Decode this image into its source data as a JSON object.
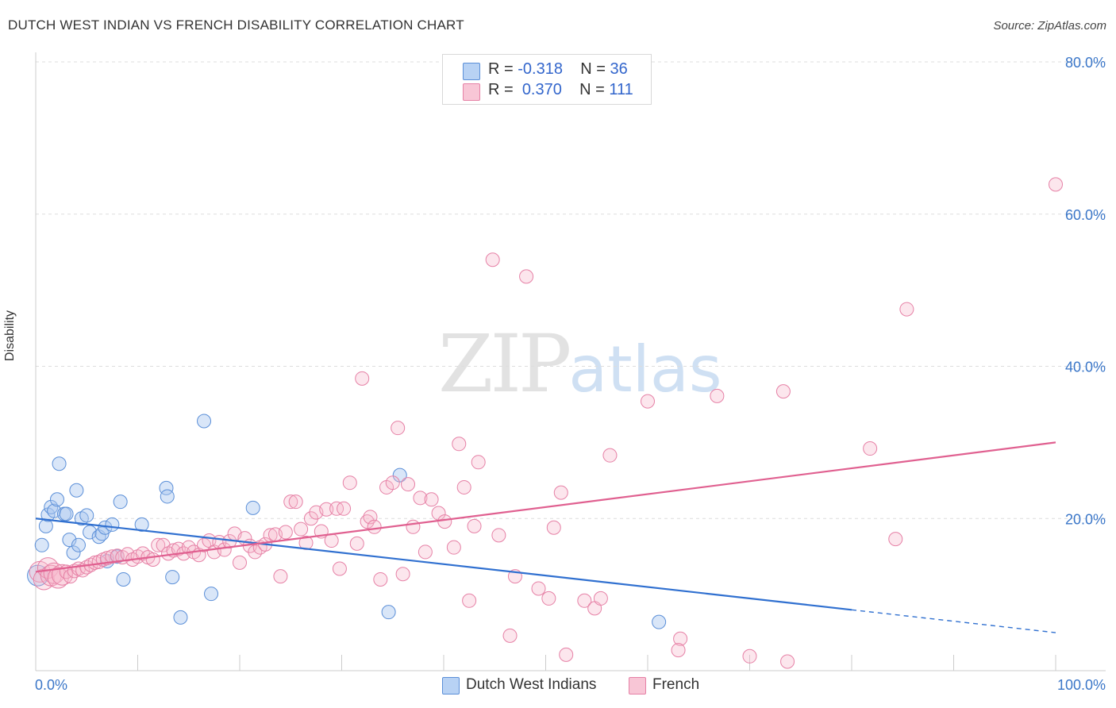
{
  "title": "DUTCH WEST INDIAN VS FRENCH DISABILITY CORRELATION CHART",
  "source": "Source: ZipAtlas.com",
  "watermark": {
    "zip": "ZIP",
    "atlas": "atlas"
  },
  "colors": {
    "blue": "#3070d0",
    "blue_fill": "#aac8f0",
    "pink": "#e06090",
    "pink_fill": "#f5b8cc",
    "grid": "#dddddd",
    "tick_label": "#3a76c8"
  },
  "legend": {
    "blue": {
      "r_label": "R =",
      "r_value": "-0.318",
      "n_label": "N =",
      "n_value": "36"
    },
    "pink": {
      "r_label": "R =",
      "r_value": "0.370",
      "n_label": "N =",
      "n_value": "111"
    }
  },
  "bottom_legend": {
    "blue": "Dutch West Indians",
    "pink": "French"
  },
  "chart_data": {
    "type": "scatter",
    "title": "DUTCH WEST INDIAN VS FRENCH DISABILITY CORRELATION CHART",
    "xlabel": "",
    "ylabel": "Disability",
    "xlim": [
      0,
      100
    ],
    "ylim": [
      0,
      80
    ],
    "x_tick_labels": [
      "0.0%",
      "100.0%"
    ],
    "y_ticks": [
      20,
      40,
      60,
      80
    ],
    "y_tick_labels": [
      "20.0%",
      "40.0%",
      "60.0%",
      "80.0%"
    ],
    "grid": "horizontal dashed",
    "legend_placement": "top-center",
    "series": [
      {
        "name": "Dutch West Indians",
        "color": "#3070d0",
        "trend": {
          "x0": 0,
          "y0": 20.0,
          "x1": 80,
          "y1": 8.0,
          "dashed_to_x": 100,
          "dashed_to_y": 5.0
        },
        "points": [
          [
            0.2,
            12.5
          ],
          [
            0.6,
            16.5
          ],
          [
            1.0,
            19.0
          ],
          [
            1.2,
            20.5
          ],
          [
            1.5,
            21.5
          ],
          [
            1.8,
            21.0
          ],
          [
            2.1,
            22.5
          ],
          [
            2.3,
            27.2
          ],
          [
            2.8,
            20.6
          ],
          [
            3.0,
            20.6
          ],
          [
            3.3,
            17.2
          ],
          [
            3.7,
            15.5
          ],
          [
            4.0,
            23.7
          ],
          [
            4.2,
            16.5
          ],
          [
            4.5,
            20.0
          ],
          [
            5.0,
            20.4
          ],
          [
            5.3,
            18.2
          ],
          [
            6.2,
            17.6
          ],
          [
            6.5,
            18.0
          ],
          [
            6.8,
            18.8
          ],
          [
            7.0,
            14.4
          ],
          [
            7.5,
            19.2
          ],
          [
            8.0,
            15.0
          ],
          [
            8.3,
            22.2
          ],
          [
            8.6,
            12.0
          ],
          [
            10.4,
            19.2
          ],
          [
            12.8,
            24.0
          ],
          [
            12.9,
            22.9
          ],
          [
            13.4,
            12.3
          ],
          [
            14.2,
            7.0
          ],
          [
            16.5,
            32.8
          ],
          [
            17.2,
            10.1
          ],
          [
            21.3,
            21.4
          ],
          [
            34.6,
            7.7
          ],
          [
            35.7,
            25.7
          ],
          [
            61.1,
            6.4
          ]
        ]
      },
      {
        "name": "French",
        "color": "#e06090",
        "trend": {
          "x0": 0,
          "y0": 13.0,
          "x1": 100,
          "y1": 30.0
        },
        "points": [
          [
            0.4,
            13.0
          ],
          [
            0.8,
            12.0
          ],
          [
            1.2,
            13.5
          ],
          [
            1.5,
            12.5
          ],
          [
            1.8,
            12.8
          ],
          [
            2.2,
            12.2
          ],
          [
            2.6,
            12.6
          ],
          [
            3.0,
            13.0
          ],
          [
            3.4,
            12.4
          ],
          [
            3.8,
            13.1
          ],
          [
            4.2,
            13.4
          ],
          [
            4.6,
            13.2
          ],
          [
            5.0,
            13.6
          ],
          [
            5.4,
            13.9
          ],
          [
            5.8,
            14.2
          ],
          [
            6.2,
            14.3
          ],
          [
            6.6,
            14.6
          ],
          [
            7.0,
            14.8
          ],
          [
            7.5,
            15.0
          ],
          [
            8.0,
            15.1
          ],
          [
            8.5,
            14.9
          ],
          [
            9.0,
            15.3
          ],
          [
            9.5,
            14.6
          ],
          [
            10.0,
            15.0
          ],
          [
            10.5,
            15.4
          ],
          [
            11.0,
            14.9
          ],
          [
            11.5,
            14.6
          ],
          [
            12.0,
            16.5
          ],
          [
            12.5,
            16.5
          ],
          [
            13.0,
            15.4
          ],
          [
            13.5,
            15.8
          ],
          [
            14.0,
            16.0
          ],
          [
            14.5,
            15.4
          ],
          [
            15.0,
            16.2
          ],
          [
            15.5,
            15.6
          ],
          [
            16.0,
            15.2
          ],
          [
            16.5,
            16.5
          ],
          [
            17.0,
            17.1
          ],
          [
            17.5,
            15.6
          ],
          [
            18.0,
            16.9
          ],
          [
            18.5,
            15.9
          ],
          [
            19.0,
            17.0
          ],
          [
            19.5,
            18.0
          ],
          [
            20.0,
            14.2
          ],
          [
            20.5,
            17.4
          ],
          [
            21.0,
            16.4
          ],
          [
            21.5,
            15.6
          ],
          [
            22.0,
            16.2
          ],
          [
            22.5,
            16.6
          ],
          [
            23.0,
            17.8
          ],
          [
            23.5,
            17.9
          ],
          [
            24.0,
            12.4
          ],
          [
            24.5,
            18.2
          ],
          [
            25.0,
            22.2
          ],
          [
            25.5,
            22.2
          ],
          [
            26.0,
            18.6
          ],
          [
            26.5,
            16.8
          ],
          [
            27.0,
            20.0
          ],
          [
            27.5,
            20.8
          ],
          [
            28.0,
            18.3
          ],
          [
            28.5,
            21.2
          ],
          [
            29.0,
            17.1
          ],
          [
            29.5,
            21.3
          ],
          [
            29.8,
            13.4
          ],
          [
            30.2,
            21.3
          ],
          [
            30.8,
            24.7
          ],
          [
            31.5,
            16.7
          ],
          [
            32.0,
            38.4
          ],
          [
            32.5,
            19.6
          ],
          [
            32.8,
            20.2
          ],
          [
            33.2,
            18.9
          ],
          [
            33.8,
            12.0
          ],
          [
            34.4,
            24.1
          ],
          [
            35.0,
            24.7
          ],
          [
            35.5,
            31.9
          ],
          [
            36.0,
            12.7
          ],
          [
            36.5,
            24.5
          ],
          [
            37.0,
            18.9
          ],
          [
            37.7,
            22.7
          ],
          [
            38.2,
            15.6
          ],
          [
            38.8,
            22.5
          ],
          [
            39.5,
            20.7
          ],
          [
            40.1,
            19.6
          ],
          [
            41.0,
            16.2
          ],
          [
            41.5,
            29.8
          ],
          [
            42.0,
            24.1
          ],
          [
            42.5,
            9.2
          ],
          [
            43.0,
            19.0
          ],
          [
            43.4,
            27.4
          ],
          [
            44.8,
            54.0
          ],
          [
            45.4,
            17.8
          ],
          [
            46.5,
            4.6
          ],
          [
            47.0,
            12.4
          ],
          [
            48.1,
            51.8
          ],
          [
            49.3,
            10.8
          ],
          [
            50.3,
            9.5
          ],
          [
            50.8,
            18.8
          ],
          [
            51.5,
            23.4
          ],
          [
            52.0,
            2.1
          ],
          [
            53.8,
            9.2
          ],
          [
            54.8,
            8.2
          ],
          [
            55.4,
            9.5
          ],
          [
            56.3,
            28.3
          ],
          [
            60.0,
            35.4
          ],
          [
            63.2,
            4.2
          ],
          [
            63.0,
            2.7
          ],
          [
            66.8,
            36.1
          ],
          [
            70.0,
            1.9
          ],
          [
            73.3,
            36.7
          ],
          [
            73.7,
            1.2
          ],
          [
            81.8,
            29.2
          ],
          [
            84.3,
            17.3
          ],
          [
            85.4,
            47.5
          ],
          [
            100.0,
            63.9
          ]
        ]
      }
    ]
  }
}
